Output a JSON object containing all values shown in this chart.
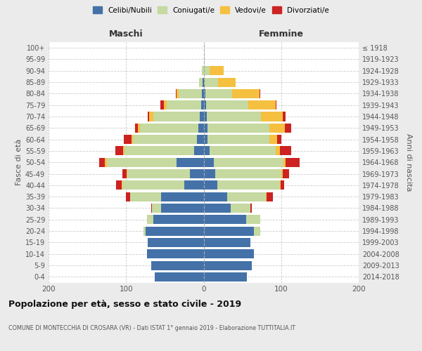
{
  "age_groups": [
    "0-4",
    "5-9",
    "10-14",
    "15-19",
    "20-24",
    "25-29",
    "30-34",
    "35-39",
    "40-44",
    "45-49",
    "50-54",
    "55-59",
    "60-64",
    "65-69",
    "70-74",
    "75-79",
    "80-84",
    "85-89",
    "90-94",
    "95-99",
    "100+"
  ],
  "birth_years": [
    "2014-2018",
    "2009-2013",
    "2004-2008",
    "1999-2003",
    "1994-1998",
    "1989-1993",
    "1984-1988",
    "1979-1983",
    "1974-1978",
    "1969-1973",
    "1964-1968",
    "1959-1963",
    "1954-1958",
    "1949-1953",
    "1944-1948",
    "1939-1943",
    "1934-1938",
    "1929-1933",
    "1924-1928",
    "1919-1923",
    "≤ 1918"
  ],
  "male": {
    "celibi": [
      63,
      68,
      73,
      72,
      75,
      65,
      55,
      55,
      25,
      18,
      35,
      12,
      9,
      7,
      5,
      3,
      2,
      1,
      0,
      0,
      0
    ],
    "coniugati": [
      0,
      0,
      0,
      0,
      3,
      8,
      12,
      40,
      80,
      80,
      90,
      90,
      82,
      75,
      60,
      45,
      30,
      5,
      2,
      0,
      0
    ],
    "vedovi": [
      0,
      0,
      0,
      0,
      0,
      0,
      0,
      0,
      1,
      1,
      2,
      2,
      2,
      3,
      5,
      3,
      3,
      0,
      0,
      0,
      0
    ],
    "divorziati": [
      0,
      0,
      0,
      0,
      0,
      0,
      1,
      5,
      7,
      6,
      8,
      10,
      10,
      3,
      2,
      5,
      1,
      0,
      0,
      0,
      0
    ]
  },
  "female": {
    "nubili": [
      56,
      62,
      65,
      60,
      65,
      55,
      35,
      30,
      18,
      15,
      13,
      8,
      5,
      5,
      4,
      3,
      2,
      1,
      0,
      0,
      0
    ],
    "coniugate": [
      0,
      0,
      0,
      0,
      8,
      18,
      25,
      50,
      80,
      85,
      90,
      85,
      80,
      80,
      70,
      55,
      35,
      18,
      8,
      1,
      0
    ],
    "vedove": [
      0,
      0,
      0,
      0,
      0,
      0,
      0,
      1,
      1,
      2,
      3,
      5,
      10,
      20,
      28,
      35,
      35,
      22,
      18,
      0,
      0
    ],
    "divorziate": [
      0,
      0,
      0,
      0,
      0,
      0,
      2,
      8,
      5,
      8,
      18,
      15,
      5,
      8,
      4,
      1,
      1,
      0,
      0,
      0,
      0
    ]
  },
  "colors": {
    "celibi": "#4472a8",
    "coniugati": "#c5d9a0",
    "vedovi": "#f5c040",
    "divorziati": "#cc2222"
  },
  "title": "Popolazione per età, sesso e stato civile - 2019",
  "subtitle": "COMUNE DI MONTECCHIA DI CROSARA (VR) - Dati ISTAT 1° gennaio 2019 - Elaborazione TUTTITALIA.IT",
  "xlabel_left": "Maschi",
  "xlabel_right": "Femmine",
  "ylabel_left": "Fasce di età",
  "ylabel_right": "Anni di nascita",
  "xlim": 200,
  "bg_color": "#ebebeb",
  "plot_bg_color": "#ffffff"
}
